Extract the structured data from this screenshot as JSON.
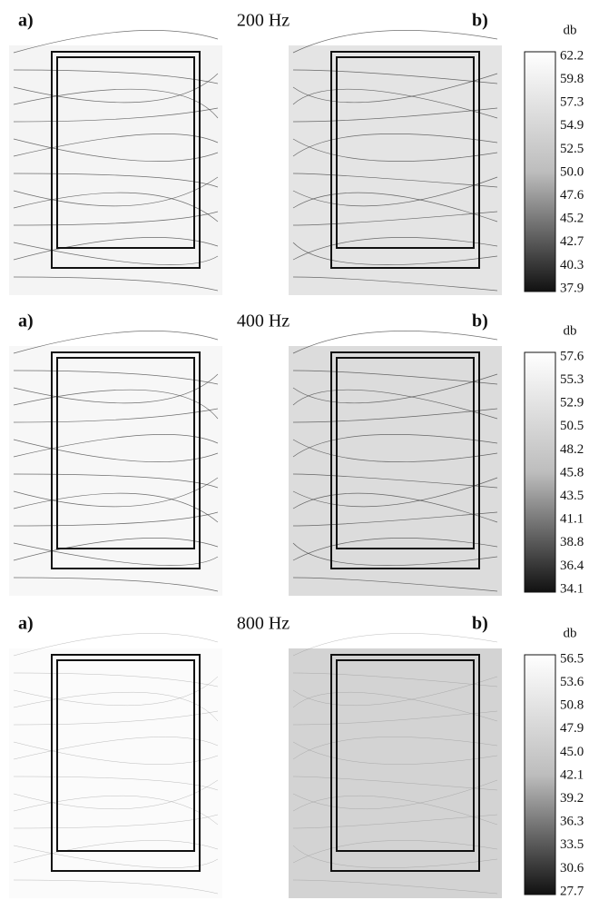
{
  "panels": [
    {
      "left_label": "a)",
      "title": "200 Hz",
      "right_label": "b)",
      "colorbar": {
        "unit": "db",
        "ticks": [
          "62.2",
          "59.8",
          "57.3",
          "54.9",
          "52.5",
          "50.0",
          "47.6",
          "45.2",
          "42.7",
          "40.3",
          "37.9"
        ]
      }
    },
    {
      "left_label": "a)",
      "title": "400 Hz",
      "right_label": "b)",
      "colorbar": {
        "unit": "db",
        "ticks": [
          "57.6",
          "55.3",
          "52.9",
          "50.5",
          "48.2",
          "45.8",
          "43.5",
          "41.1",
          "38.8",
          "36.4",
          "34.1"
        ]
      }
    },
    {
      "left_label": "a)",
      "title": "800 Hz",
      "right_label": "b)",
      "colorbar": {
        "unit": "db",
        "ticks": [
          "56.5",
          "53.6",
          "50.8",
          "47.9",
          "45.0",
          "42.1",
          "39.2",
          "36.3",
          "33.5",
          "30.6",
          "27.7"
        ]
      }
    }
  ]
}
